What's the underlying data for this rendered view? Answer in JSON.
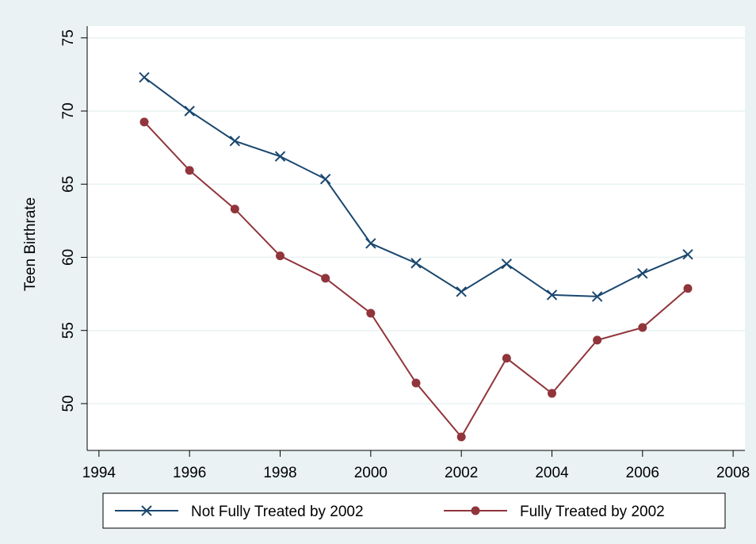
{
  "chart_data": {
    "type": "line",
    "y_label": "Teen Birthrate",
    "x": [
      1995,
      1996,
      1997,
      1998,
      1999,
      2000,
      2001,
      2002,
      2003,
      2004,
      2005,
      2006,
      2007
    ],
    "series": [
      {
        "name": "Not Fully Treated by 2002",
        "color": "#1a476f",
        "marker": "x",
        "values": [
          72.3,
          70.0,
          67.95,
          66.9,
          65.35,
          60.95,
          59.6,
          57.65,
          59.55,
          57.43,
          57.32,
          58.9,
          60.2
        ]
      },
      {
        "name": "Fully Treated by 2002",
        "color": "#90353b",
        "marker": "circle",
        "values": [
          69.25,
          65.94,
          63.3,
          60.1,
          58.57,
          56.18,
          51.41,
          47.72,
          53.1,
          50.7,
          54.34,
          55.2,
          57.87
        ]
      }
    ],
    "xlim": [
      1993.74,
      2008.26
    ],
    "xticks": [
      1994,
      1996,
      1998,
      2000,
      2002,
      2004,
      2006,
      2008
    ],
    "ylim": [
      46.8,
      75.8
    ],
    "yticks": [
      50,
      55,
      60,
      65,
      70,
      75
    ],
    "grid": true
  }
}
